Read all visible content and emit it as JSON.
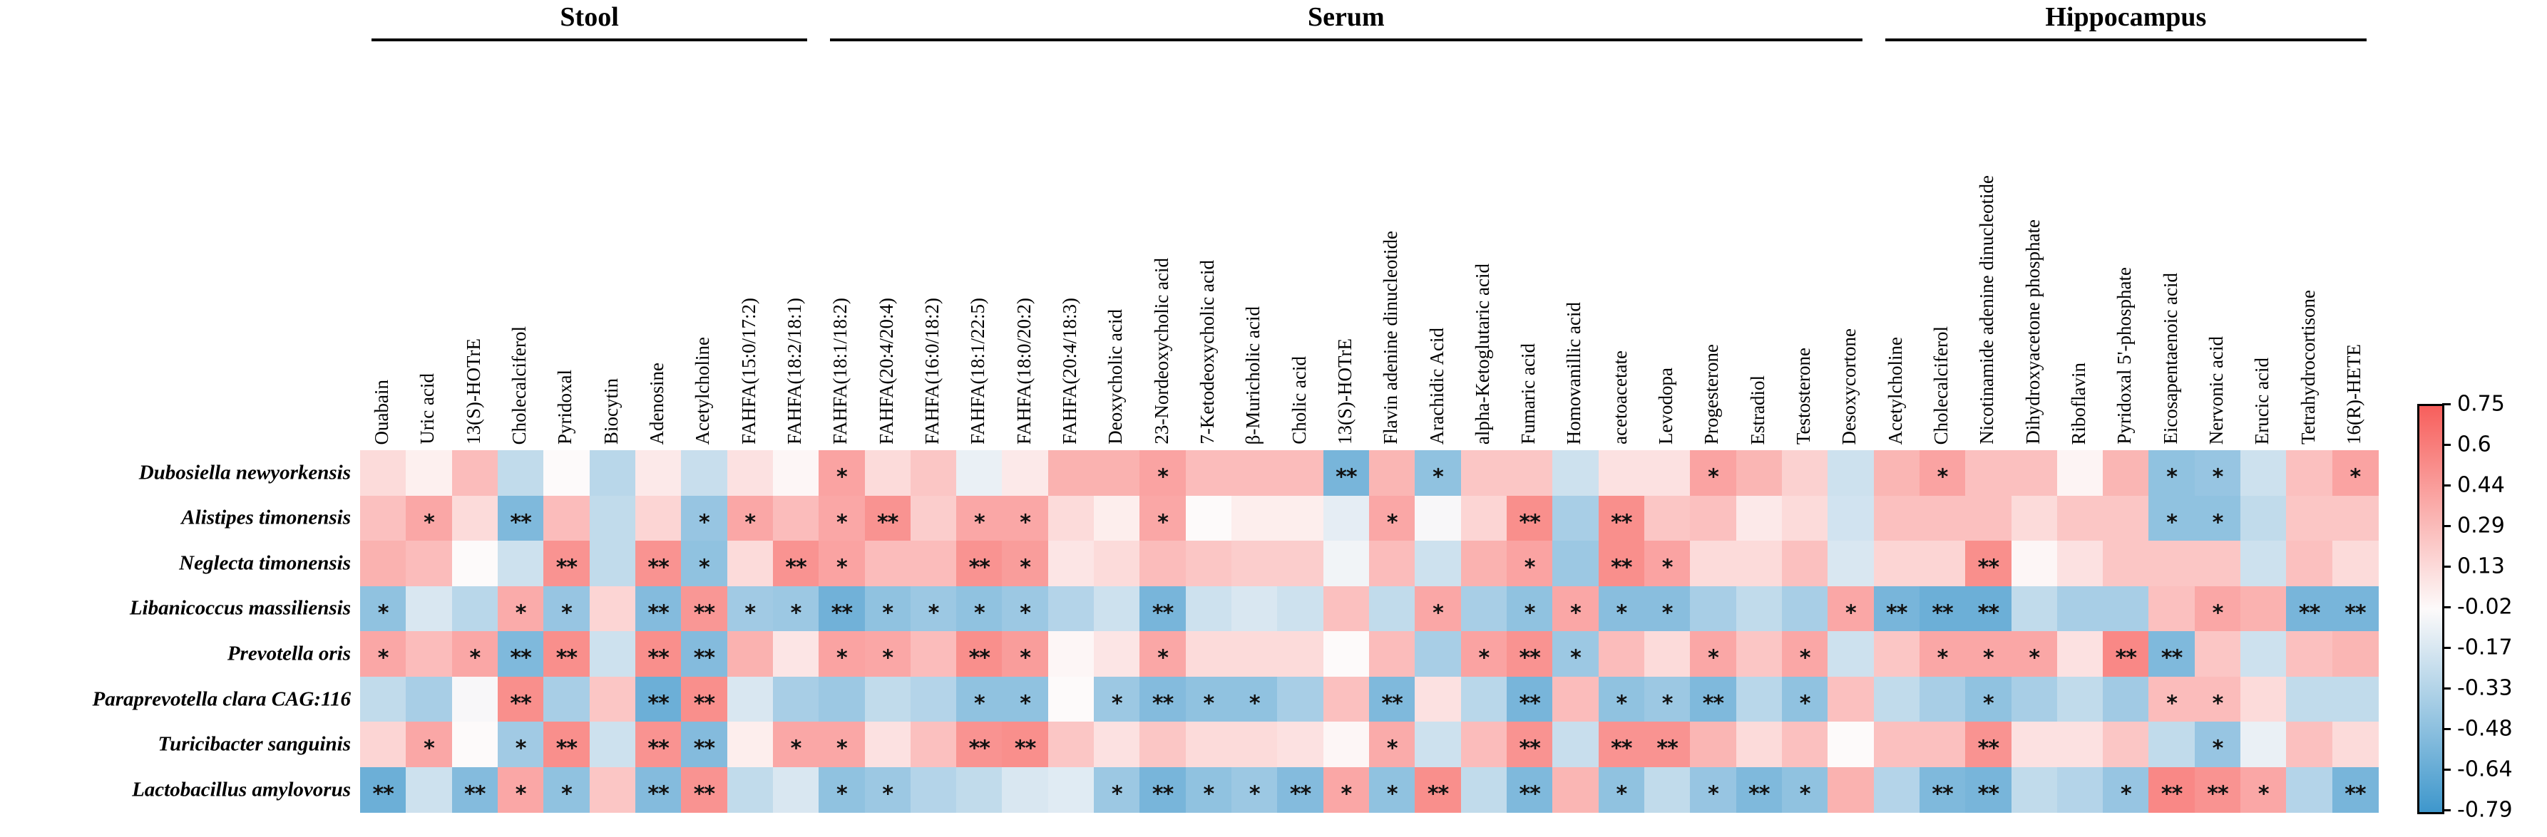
{
  "chart_data": {
    "type": "heatmap",
    "title": "",
    "legend_position": "right",
    "groups": [
      {
        "label": "Stool",
        "start": 0,
        "count": 10
      },
      {
        "label": "Serum",
        "start": 10,
        "count": 23
      },
      {
        "label": "Hippocampus",
        "start": 33,
        "count": 11
      }
    ],
    "columns": [
      "Ouabain",
      "Uric acid",
      "13(S)-HOTrE",
      "Cholecalciferol",
      "Pyridoxal",
      "Biocytin",
      "Adenosine",
      "Acetylcholine",
      "FAHFA(15:0/17:2)",
      "FAHFA(18:2/18:1)",
      "FAHFA(18:1/18:2)",
      "FAHFA(20:4/20:4)",
      "FAHFA(16:0/18:2)",
      "FAHFA(18:1/22:5)",
      "FAHFA(18:0/20:2)",
      "FAHFA(20:4/18:3)",
      "Deoxycholic acid",
      "23-Nordeoxycholic acid",
      "7-Ketodeoxycholic acid",
      "β-Muricholic acid",
      "Cholic acid",
      "13(S)-HOTrE",
      "Flavin adenine dinucleotide",
      "Arachidic Acid",
      "alpha-Ketoglutaric acid",
      "Fumaric acid",
      "Homovanillic acid",
      "acetoacetate",
      "Levodopa",
      "Progesterone",
      "Estradiol",
      "Testosterone",
      "Desoxycortone",
      "Acetylcholine",
      "Cholecalciferol",
      "Nicotinamide adenine dinucleotide",
      "Dihydroxyacetone phosphate",
      "Riboflavin",
      "Pyridoxal 5'-phosphate",
      "Eicosapentaenoic acid",
      "Nervonic acid",
      "Erucic acid",
      "Tetrahydrocortisone",
      "16(R)-HETE"
    ],
    "rows": [
      "Dubosiella newyorkensis",
      "Alistipes timonensis",
      "Neglecta timonensis",
      "Libanicoccus massiliensis",
      "Prevotella oris",
      "Paraprevotella clara CAG:116",
      "Turicibacter sanguinis",
      "Lactobacillus amylovorus"
    ],
    "values": [
      [
        0.15,
        0.05,
        0.3,
        -0.25,
        0.0,
        -0.28,
        0.08,
        -0.22,
        0.12,
        0.02,
        0.42,
        0.15,
        0.25,
        -0.08,
        0.08,
        0.35,
        0.35,
        0.42,
        0.3,
        0.3,
        0.3,
        -0.55,
        0.33,
        -0.45,
        0.25,
        0.25,
        -0.2,
        0.12,
        0.12,
        0.42,
        0.33,
        0.2,
        -0.2,
        0.33,
        0.42,
        0.28,
        0.28,
        0.03,
        0.33,
        -0.45,
        -0.42,
        -0.2,
        0.28,
        0.42
      ],
      [
        0.28,
        0.4,
        0.15,
        -0.52,
        0.3,
        -0.25,
        0.18,
        -0.42,
        0.4,
        0.3,
        0.4,
        0.5,
        0.22,
        0.4,
        0.4,
        0.15,
        0.06,
        0.4,
        0.0,
        0.06,
        0.06,
        -0.1,
        0.4,
        -0.02,
        0.18,
        0.52,
        -0.35,
        0.52,
        0.25,
        0.28,
        0.08,
        0.15,
        -0.18,
        0.28,
        0.28,
        0.28,
        0.15,
        0.25,
        0.25,
        -0.45,
        -0.45,
        -0.25,
        0.25,
        0.25
      ],
      [
        0.35,
        0.3,
        0.0,
        -0.2,
        0.5,
        -0.25,
        0.5,
        -0.45,
        0.15,
        0.5,
        0.42,
        0.3,
        0.3,
        0.5,
        0.45,
        0.1,
        0.15,
        0.3,
        0.25,
        0.22,
        0.22,
        -0.05,
        0.3,
        -0.2,
        0.35,
        0.42,
        -0.4,
        0.52,
        0.42,
        0.15,
        0.15,
        0.28,
        -0.15,
        0.18,
        0.18,
        0.52,
        0.02,
        0.12,
        0.25,
        0.25,
        0.25,
        -0.2,
        0.28,
        0.15
      ],
      [
        -0.45,
        -0.15,
        -0.28,
        0.38,
        -0.42,
        0.18,
        -0.5,
        0.48,
        -0.38,
        -0.4,
        -0.58,
        -0.45,
        -0.4,
        -0.45,
        -0.4,
        -0.3,
        -0.2,
        -0.55,
        -0.2,
        -0.15,
        -0.2,
        0.28,
        -0.25,
        0.4,
        -0.35,
        -0.45,
        0.4,
        -0.48,
        -0.48,
        -0.35,
        -0.25,
        -0.35,
        0.4,
        -0.55,
        -0.6,
        -0.6,
        -0.25,
        -0.35,
        -0.35,
        0.28,
        0.4,
        0.35,
        -0.55,
        -0.55
      ],
      [
        0.4,
        0.3,
        0.4,
        -0.52,
        0.52,
        -0.2,
        0.52,
        -0.5,
        0.35,
        0.1,
        0.42,
        0.4,
        0.3,
        0.52,
        0.45,
        0.02,
        0.1,
        0.4,
        0.15,
        0.15,
        0.15,
        0.0,
        0.3,
        -0.35,
        0.42,
        0.5,
        -0.4,
        0.3,
        0.15,
        0.4,
        0.25,
        0.4,
        -0.2,
        0.25,
        0.4,
        0.4,
        0.4,
        0.12,
        0.55,
        -0.52,
        0.25,
        -0.2,
        0.28,
        0.33
      ],
      [
        -0.25,
        -0.35,
        -0.02,
        0.52,
        -0.35,
        0.25,
        -0.6,
        0.52,
        -0.15,
        -0.35,
        -0.4,
        -0.25,
        -0.3,
        -0.45,
        -0.45,
        0.0,
        -0.4,
        -0.5,
        -0.45,
        -0.45,
        -0.35,
        0.28,
        -0.52,
        0.12,
        -0.28,
        -0.55,
        0.3,
        -0.45,
        -0.4,
        -0.52,
        -0.28,
        -0.45,
        0.28,
        -0.25,
        -0.35,
        -0.45,
        -0.35,
        -0.25,
        -0.38,
        0.3,
        0.3,
        0.15,
        -0.25,
        -0.25
      ],
      [
        0.18,
        0.4,
        0.0,
        -0.38,
        0.52,
        -0.2,
        0.5,
        -0.5,
        0.06,
        0.4,
        0.4,
        0.12,
        0.28,
        0.5,
        0.52,
        0.25,
        0.12,
        0.25,
        0.15,
        0.15,
        0.12,
        0.02,
        0.38,
        -0.2,
        0.3,
        0.5,
        -0.22,
        0.5,
        0.5,
        0.33,
        0.15,
        0.28,
        0.0,
        0.28,
        0.28,
        0.5,
        0.12,
        0.12,
        0.25,
        -0.25,
        -0.42,
        -0.08,
        0.28,
        0.15
      ],
      [
        -0.6,
        -0.2,
        -0.5,
        0.4,
        -0.45,
        0.25,
        -0.5,
        0.5,
        -0.25,
        -0.15,
        -0.45,
        -0.4,
        -0.3,
        -0.25,
        -0.15,
        -0.12,
        -0.4,
        -0.55,
        -0.45,
        -0.4,
        -0.5,
        0.4,
        -0.45,
        0.52,
        -0.25,
        -0.52,
        0.33,
        -0.45,
        -0.25,
        -0.42,
        -0.52,
        -0.45,
        0.35,
        -0.3,
        -0.52,
        -0.55,
        -0.25,
        -0.3,
        -0.42,
        0.55,
        0.5,
        0.4,
        -0.3,
        -0.55
      ]
    ],
    "significance": [
      [
        "",
        "",
        "",
        "",
        "",
        "",
        "",
        "",
        "",
        "",
        "*",
        "",
        "",
        "",
        "",
        "",
        "",
        "*",
        "",
        "",
        "",
        "**",
        "",
        "*",
        "",
        "",
        "",
        "",
        "",
        "*",
        "",
        "",
        "",
        "",
        "*",
        "",
        "",
        "",
        "",
        "*",
        "*",
        "",
        "",
        "*"
      ],
      [
        "",
        "*",
        "",
        "**",
        "",
        "",
        "",
        "*",
        "*",
        "",
        "*",
        "**",
        "",
        "*",
        "*",
        "",
        "",
        "*",
        "",
        "",
        "",
        "",
        "*",
        "",
        "",
        "**",
        "",
        "**",
        "",
        "",
        "",
        "",
        "",
        "",
        "",
        "",
        "",
        "",
        "",
        "*",
        "*",
        "",
        "",
        ""
      ],
      [
        "",
        "",
        "",
        "",
        "**",
        "",
        "**",
        "*",
        "",
        "**",
        "*",
        "",
        "",
        "**",
        "*",
        "",
        "",
        "",
        "",
        "",
        "",
        "",
        "",
        "",
        "",
        "*",
        "",
        "**",
        "*",
        "",
        "",
        "",
        "",
        "",
        "",
        "**",
        "",
        "",
        "",
        "",
        "",
        "",
        "",
        ""
      ],
      [
        "*",
        "",
        "",
        "*",
        "*",
        "",
        "**",
        "**",
        "*",
        "*",
        "**",
        "*",
        "*",
        "*",
        "*",
        "",
        "",
        "**",
        "",
        "",
        "",
        "",
        "",
        "*",
        "",
        "*",
        "*",
        "*",
        "*",
        "",
        "",
        "",
        "*",
        "**",
        "**",
        "**",
        "",
        "",
        "",
        "",
        "*",
        "",
        "**",
        "**"
      ],
      [
        "*",
        "",
        "*",
        "**",
        "**",
        "",
        "**",
        "**",
        "",
        "",
        "*",
        "*",
        "",
        "**",
        "*",
        "",
        "",
        "*",
        "",
        "",
        "",
        "",
        "",
        "",
        "*",
        "**",
        "*",
        "",
        "",
        "*",
        "",
        "*",
        "",
        "",
        "*",
        "*",
        "*",
        "",
        "**",
        "**",
        "",
        "",
        "",
        ""
      ],
      [
        "",
        "",
        "",
        "**",
        "",
        "",
        "**",
        "**",
        "",
        "",
        "",
        "",
        "",
        "*",
        "*",
        "",
        "*",
        "**",
        "*",
        "*",
        "",
        "",
        "**",
        "",
        "",
        "**",
        "",
        "*",
        "*",
        "**",
        "",
        "*",
        "",
        "",
        "",
        "*",
        "",
        "",
        "",
        "*",
        "*",
        "",
        "",
        ""
      ],
      [
        "",
        "*",
        "",
        "*",
        "**",
        "",
        "**",
        "**",
        "",
        "*",
        "*",
        "",
        "",
        "**",
        "**",
        "",
        "",
        "",
        "",
        "",
        "",
        "",
        "*",
        "",
        "",
        "**",
        "",
        "**",
        "**",
        "",
        "",
        "",
        "",
        "",
        "",
        "**",
        "",
        "",
        "",
        "",
        "*",
        "",
        "",
        ""
      ],
      [
        "**",
        "",
        "**",
        "*",
        "*",
        "",
        "**",
        "**",
        "",
        "",
        "*",
        "*",
        "",
        "",
        "",
        "",
        "*",
        "**",
        "*",
        "*",
        "**",
        "*",
        "*",
        "**",
        "",
        "**",
        "",
        "*",
        "",
        "*",
        "**",
        "*",
        "",
        "",
        "**",
        "**",
        "",
        "",
        "*",
        "**",
        "**",
        "*",
        "",
        "**"
      ]
    ],
    "colorbar": {
      "ticks": [
        "0.75",
        "0.6",
        "0.44",
        "0.29",
        "0.13",
        "-0.02",
        "-0.17",
        "-0.33",
        "-0.48",
        "-0.64",
        "-0.79"
      ],
      "value_max": 0.75,
      "value_min": -0.79,
      "color_max": "#F75F5C",
      "color_mid": "#FDFAFA",
      "color_min": "#3E97CC"
    },
    "grid": false,
    "significance_legend": "* p<0.05, ** p<0.01 (as shown by asterisks in cells)"
  }
}
